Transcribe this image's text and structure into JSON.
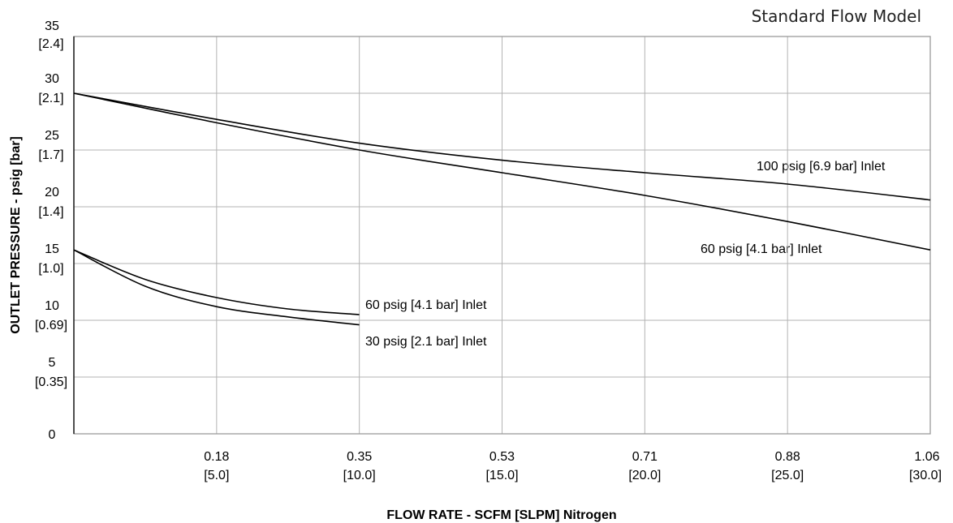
{
  "chart_data": {
    "type": "line",
    "title": "Standard Flow Model",
    "xlabel": "FLOW RATE - SCFM [SLPM] Nitrogen",
    "ylabel": "OUTLET PRESSURE - psig [bar]",
    "xlim": [
      0,
      30
    ],
    "ylim": [
      0,
      35
    ],
    "grid": true,
    "x_ticks": [
      {
        "value": 5,
        "label": "0.18",
        "sublabel": "[5.0]"
      },
      {
        "value": 10,
        "label": "0.35",
        "sublabel": "[10.0]"
      },
      {
        "value": 15,
        "label": "0.53",
        "sublabel": "[15.0]"
      },
      {
        "value": 20,
        "label": "0.71",
        "sublabel": "[20.0]"
      },
      {
        "value": 25,
        "label": "0.88",
        "sublabel": "[25.0]"
      },
      {
        "value": 30,
        "label": "1.06",
        "sublabel": "[30.0]"
      }
    ],
    "y_ticks": [
      {
        "value": 0,
        "label": "0",
        "sublabel": ""
      },
      {
        "value": 5,
        "label": "5",
        "sublabel": "[0.35]"
      },
      {
        "value": 10,
        "label": "10",
        "sublabel": "[0.69]"
      },
      {
        "value": 15,
        "label": "15",
        "sublabel": "[1.0]"
      },
      {
        "value": 20,
        "label": "20",
        "sublabel": "[1.4]"
      },
      {
        "value": 25,
        "label": "25",
        "sublabel": "[1.7]"
      },
      {
        "value": 30,
        "label": "30",
        "sublabel": "[2.1]"
      },
      {
        "value": 35,
        "label": "35",
        "sublabel": "[2.4]"
      }
    ],
    "series": [
      {
        "name": "100 psig [6.9 bar] Inlet",
        "x": [
          0,
          5,
          10,
          15,
          20,
          25,
          30
        ],
        "y": [
          30,
          27.7,
          25.6,
          24.1,
          23.0,
          22.0,
          20.6
        ]
      },
      {
        "name": "60 psig [4.1 bar] Inlet",
        "x": [
          0,
          5,
          10,
          15,
          20,
          25,
          30
        ],
        "y": [
          30,
          27.4,
          25.0,
          23.0,
          21.0,
          18.7,
          16.2
        ]
      },
      {
        "name": "60 psig [4.1 bar] Inlet",
        "x": [
          0,
          2.5,
          5,
          7.5,
          10
        ],
        "y": [
          16.2,
          13.6,
          12.0,
          11.0,
          10.5
        ]
      },
      {
        "name": "30 psig [2.1 bar] Inlet",
        "x": [
          0,
          2.5,
          5,
          7.5,
          10
        ],
        "y": [
          16.2,
          13.0,
          11.2,
          10.3,
          9.6
        ]
      }
    ]
  }
}
